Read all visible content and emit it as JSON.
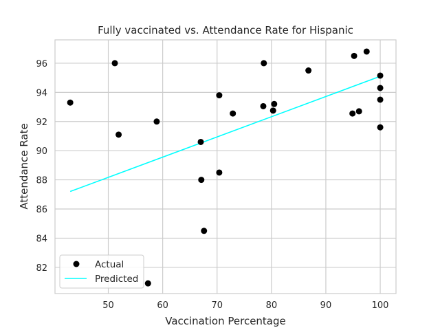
{
  "chart_data": {
    "type": "scatter",
    "title": "Fully vaccinated vs. Attendance Rate for Hispanic",
    "xlabel": "Vaccination Percentage",
    "ylabel": "Attendance Rate",
    "xlim": [
      40.2,
      102.9
    ],
    "ylim": [
      80.2,
      97.6
    ],
    "xticks": [
      50,
      60,
      70,
      80,
      90,
      100
    ],
    "yticks": [
      82,
      84,
      86,
      88,
      90,
      92,
      94,
      96
    ],
    "grid": true,
    "legend_position": "lower-left",
    "series": [
      {
        "name": "Actual",
        "kind": "scatter",
        "color": "#000000",
        "points": [
          [
            43.0,
            93.3
          ],
          [
            51.2,
            96.0
          ],
          [
            51.9,
            91.1
          ],
          [
            57.3,
            80.9
          ],
          [
            58.9,
            92.0
          ],
          [
            67.0,
            90.6
          ],
          [
            67.1,
            88.0
          ],
          [
            67.6,
            84.5
          ],
          [
            70.4,
            93.8
          ],
          [
            70.4,
            88.5
          ],
          [
            72.9,
            92.55
          ],
          [
            78.5,
            93.05
          ],
          [
            78.6,
            96.0
          ],
          [
            80.3,
            92.75
          ],
          [
            80.5,
            93.2
          ],
          [
            86.8,
            95.5
          ],
          [
            94.9,
            92.55
          ],
          [
            95.2,
            96.5
          ],
          [
            96.1,
            92.7
          ],
          [
            97.5,
            96.8
          ],
          [
            100.0,
            95.15
          ],
          [
            100.0,
            94.3
          ],
          [
            100.0,
            93.5
          ],
          [
            100.0,
            91.6
          ]
        ]
      },
      {
        "name": "Predicted",
        "kind": "line",
        "color": "#00ffff",
        "points": [
          [
            43.0,
            87.2
          ],
          [
            100.0,
            95.1
          ]
        ]
      }
    ]
  }
}
